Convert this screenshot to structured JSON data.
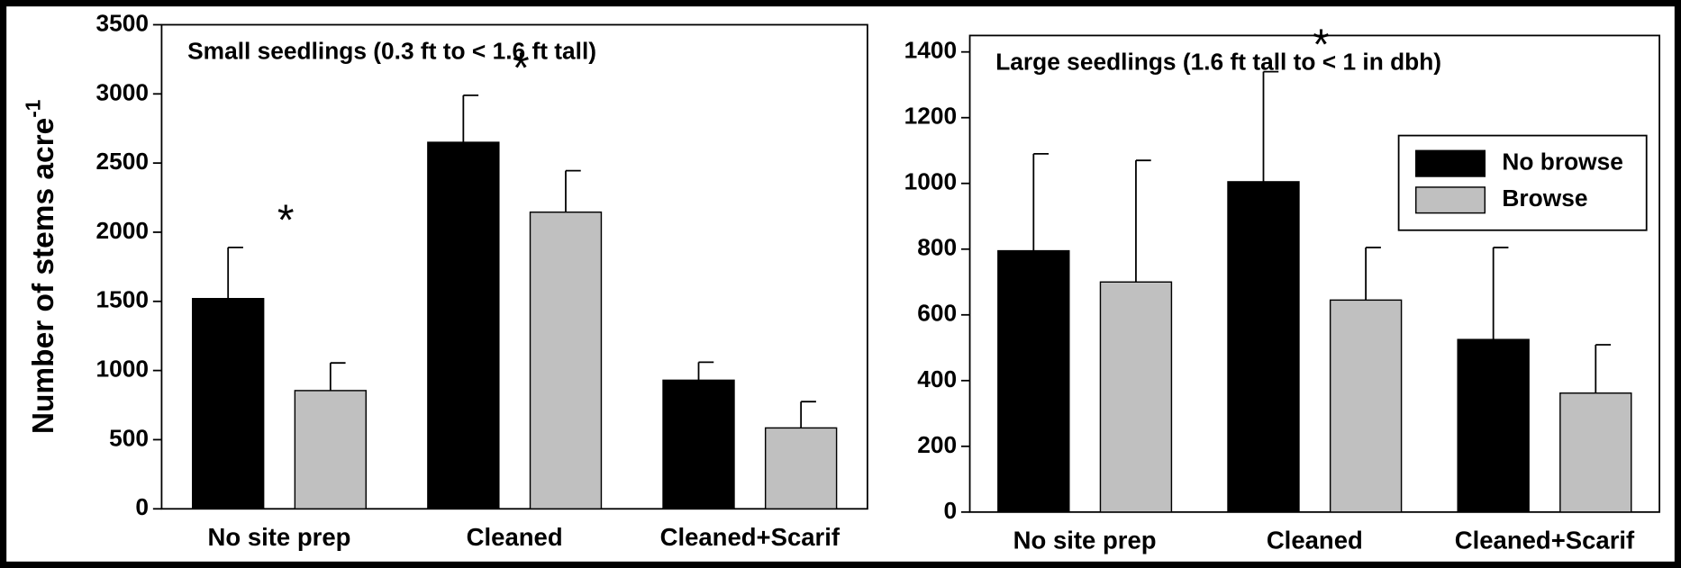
{
  "chart_data": [
    {
      "type": "bar",
      "title": "Small seedlings (0.3 ft to < 1.6 ft tall)",
      "ylabel": {
        "text": "Number of stems acre",
        "superscript": "-1"
      },
      "categories": [
        "No site prep",
        "Cleaned",
        "Cleaned+Scarif"
      ],
      "series": [
        {
          "color": "#000000",
          "values": [
            1520,
            2650,
            930
          ],
          "errors": [
            370,
            340,
            130
          ]
        },
        {
          "color": "#c0c0c0",
          "values": [
            855,
            2145,
            585
          ],
          "errors": [
            200,
            300,
            190
          ]
        }
      ],
      "annotations": [
        {
          "text": "*",
          "category": "No site prep"
        },
        {
          "text": "*",
          "category": "Cleaned"
        }
      ],
      "ylim": [
        0,
        3500
      ],
      "yticks": [
        0,
        500,
        1000,
        1500,
        2000,
        2500,
        3000,
        3500
      ]
    },
    {
      "type": "bar",
      "title": "Large seedlings (1.6 ft tall to < 1 in dbh)",
      "categories": [
        "No site prep",
        "Cleaned",
        "Cleaned+Scarif"
      ],
      "series": [
        {
          "name": "No browse",
          "color": "#000000",
          "values": [
            795,
            1005,
            525
          ],
          "errors": [
            295,
            335,
            280
          ]
        },
        {
          "name": "Browse",
          "color": "#c0c0c0",
          "values": [
            700,
            645,
            362
          ],
          "errors": [
            370,
            160,
            147
          ]
        }
      ],
      "annotations": [
        {
          "text": "*",
          "category": "Cleaned"
        }
      ],
      "legend": "upper right",
      "ylim": [
        0,
        1450
      ],
      "yticks": [
        0,
        200,
        400,
        600,
        800,
        1000,
        1200,
        1400
      ]
    }
  ]
}
